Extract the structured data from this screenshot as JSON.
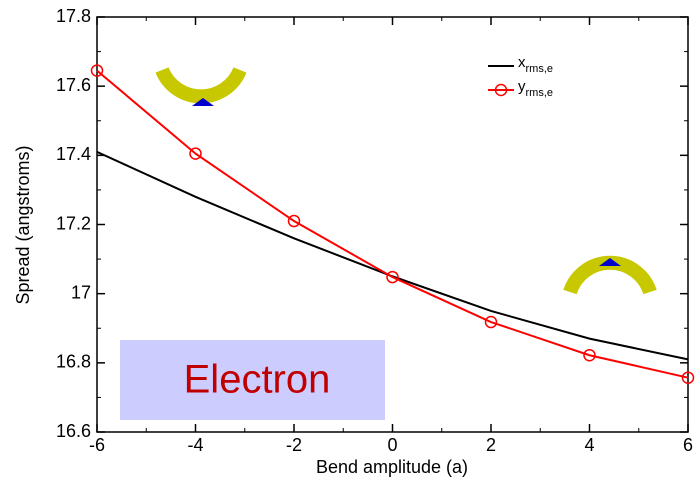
{
  "chart_data": {
    "type": "line",
    "x_label": "Bend amplitude (a)",
    "y_label": "Spread (angstroms)",
    "x": [
      -6,
      -4,
      -2,
      0,
      2,
      4,
      6
    ],
    "series": [
      {
        "name": "x",
        "name_subscript": "rms,e",
        "color": "#000000",
        "markers": false,
        "values": [
          17.41,
          17.28,
          17.16,
          17.05,
          16.95,
          16.87,
          16.81
        ]
      },
      {
        "name": "y",
        "name_subscript": "rms,e",
        "color": "#ff0000",
        "markers": true,
        "values": [
          17.645,
          17.405,
          17.21,
          17.048,
          16.918,
          16.822,
          16.757
        ]
      }
    ],
    "xlim": [
      -6,
      6
    ],
    "xticks": [
      -6,
      -4,
      -2,
      0,
      2,
      4,
      6
    ],
    "ylim": [
      16.6,
      17.8
    ],
    "yticks": [
      16.6,
      16.8,
      17,
      17.2,
      17.4,
      17.6,
      17.8
    ],
    "annotation": "Electron",
    "legend": "top-right"
  }
}
